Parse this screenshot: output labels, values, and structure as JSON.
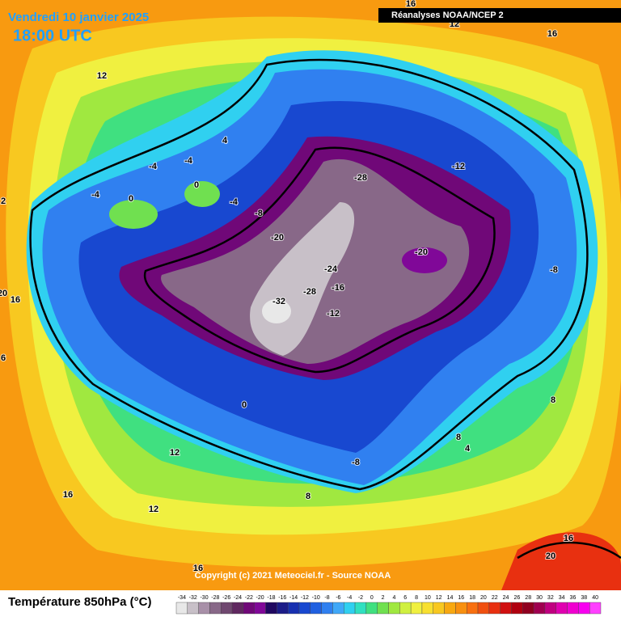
{
  "header": {
    "date": "Vendredi 10 janvier 2025",
    "time": "18:00 UTC",
    "source": "Réanalyses NOAA/NCEP 2"
  },
  "copyright": "Copyright (c) 2021 Meteociel.fr - Source NOAA",
  "legend": {
    "title": "Température 850hPa (°C)",
    "ticks": [
      -34,
      -32,
      -30,
      -28,
      -26,
      -24,
      -22,
      -20,
      -18,
      -16,
      -14,
      -12,
      -10,
      -8,
      -6,
      -4,
      -2,
      0,
      2,
      4,
      6,
      8,
      10,
      12,
      14,
      16,
      18,
      20,
      22,
      24,
      26,
      28,
      30,
      32,
      34,
      36,
      38,
      40
    ],
    "colors": [
      "#e8e8e8",
      "#c8c0c8",
      "#a890a8",
      "#886888",
      "#704870",
      "#602860",
      "#700878",
      "#800898",
      "#200860",
      "#1c1c88",
      "#1830b0",
      "#1848d0",
      "#2060e0",
      "#3080f0",
      "#40a8f8",
      "#30d0f0",
      "#30e0c0",
      "#40e080",
      "#70e050",
      "#a0e840",
      "#d0f040",
      "#f0f040",
      "#f8e030",
      "#f8c820",
      "#f8a810",
      "#f89010",
      "#f87010",
      "#f05010",
      "#e83010",
      "#d01010",
      "#b00010",
      "#900020",
      "#a00050",
      "#c00080",
      "#e000b0",
      "#f000d0",
      "#f800f0",
      "#ff40ff"
    ]
  },
  "map_labels": [
    16,
    12,
    16,
    12,
    4,
    -4,
    -4,
    -4,
    0,
    0,
    -4,
    -8,
    -28,
    -12,
    -20,
    -20,
    -24,
    -8,
    -28,
    -16,
    -32,
    -12,
    20,
    16,
    2,
    6,
    8,
    0,
    8,
    4,
    12,
    -8,
    16,
    8,
    12,
    16,
    20,
    16
  ]
}
